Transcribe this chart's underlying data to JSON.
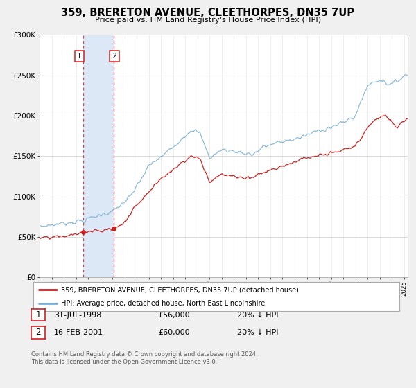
{
  "title": "359, BRERETON AVENUE, CLEETHORPES, DN35 7UP",
  "subtitle": "Price paid vs. HM Land Registry's House Price Index (HPI)",
  "legend_line1": "359, BRERETON AVENUE, CLEETHORPES, DN35 7UP (detached house)",
  "legend_line2": "HPI: Average price, detached house, North East Lincolnshire",
  "footnote1": "Contains HM Land Registry data © Crown copyright and database right 2024.",
  "footnote2": "This data is licensed under the Open Government Licence v3.0.",
  "transaction1_date": "31-JUL-1998",
  "transaction1_price": "£56,000",
  "transaction1_hpi": "20% ↓ HPI",
  "transaction2_date": "16-FEB-2001",
  "transaction2_price": "£60,000",
  "transaction2_hpi": "20% ↓ HPI",
  "sale1_x": 1998.58,
  "sale1_y": 56000,
  "sale2_x": 2001.12,
  "sale2_y": 60000,
  "shade_x1": 1998.58,
  "shade_x2": 2001.12,
  "vline1_x": 1998.58,
  "vline2_x": 2001.12,
  "ylim": [
    0,
    300000
  ],
  "xlim": [
    1995.0,
    2025.3
  ],
  "yticks": [
    0,
    50000,
    100000,
    150000,
    200000,
    250000,
    300000
  ],
  "red_color": "#cc2222",
  "blue_color": "#7bafd4",
  "shade_color": "#dce8f5",
  "vline_color": "#cc2222",
  "background_color": "#f0f0f0",
  "plot_bg_color": "#ffffff",
  "grid_color": "#cccccc"
}
